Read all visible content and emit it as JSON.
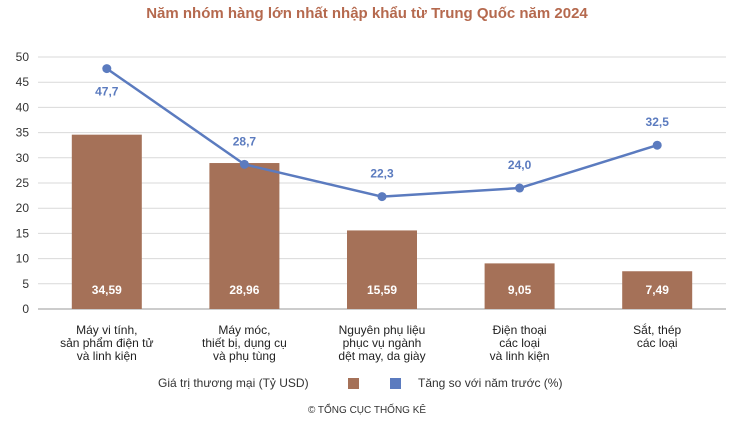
{
  "chart_data": {
    "type": "bar",
    "title": "Năm nhóm hàng lớn nhất nhập khẩu từ Trung Quốc năm 2024",
    "categories": [
      [
        "Máy vi tính,",
        "sản phẩm điện tử",
        "và linh kiện"
      ],
      [
        "Máy móc,",
        "thiết bị, dụng cụ",
        "và phụ tùng"
      ],
      [
        "Nguyên phụ liệu",
        "phục vụ ngành",
        "dệt may, da giày"
      ],
      [
        "Điện thoại",
        "các loại",
        "và linh kiện"
      ],
      [
        "Sắt, thép",
        "các loại"
      ]
    ],
    "series": [
      {
        "name": "Giá trị thương mại (Tỷ USD)",
        "type": "bar",
        "values": [
          34.59,
          28.96,
          15.59,
          9.05,
          7.49
        ],
        "labels": [
          "34,59",
          "28,96",
          "15,59",
          "9,05",
          "7,49"
        ],
        "color": "#a57158"
      },
      {
        "name": "Tăng so với năm trước (%)",
        "type": "line",
        "values": [
          47.7,
          28.7,
          22.3,
          24.0,
          32.5
        ],
        "labels": [
          "47,7",
          "28,7",
          "22,3",
          "24,0",
          "32,5"
        ],
        "color": "#5b7bbf"
      }
    ],
    "ylim": [
      0,
      50
    ],
    "yticks": [
      0,
      5,
      10,
      15,
      20,
      25,
      30,
      35,
      40,
      45,
      50
    ],
    "grid": true,
    "legend": "bottom",
    "source": "© TỔNG CỤC THỐNG KÊ"
  }
}
